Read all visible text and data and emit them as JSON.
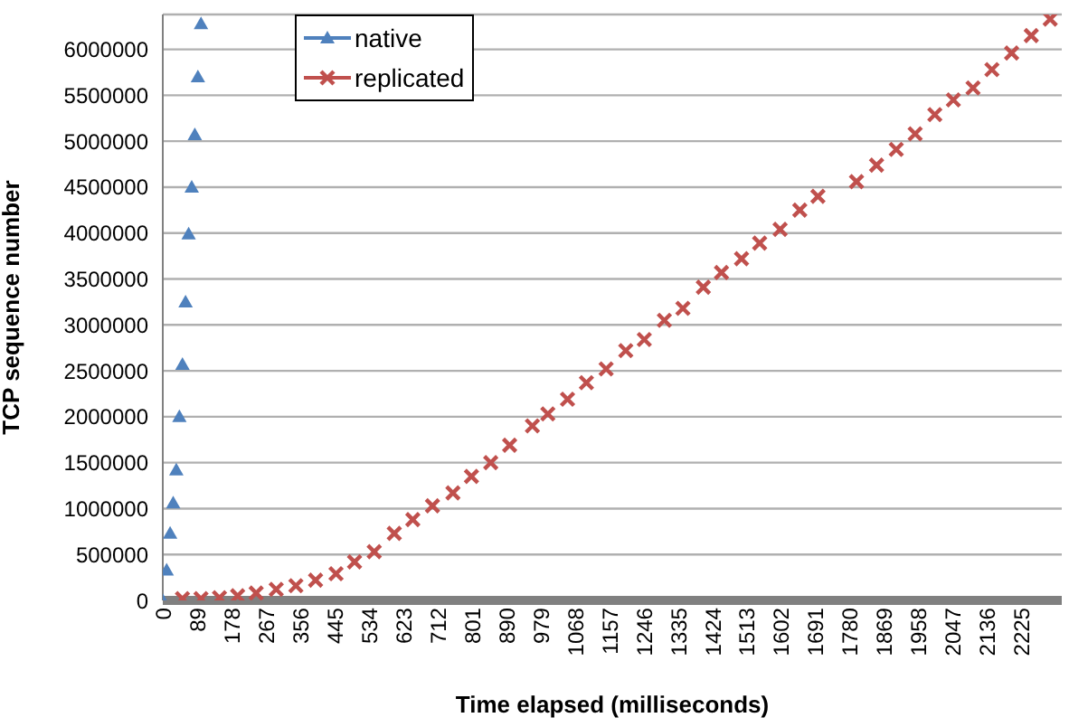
{
  "chart_data": {
    "type": "scatter",
    "xlabel": "Time elapsed (milliseconds)",
    "ylabel": "TCP sequence number",
    "xlim": [
      0,
      2330
    ],
    "xticks": [
      0,
      89,
      178,
      267,
      356,
      445,
      534,
      623,
      712,
      801,
      890,
      979,
      1068,
      1157,
      1246,
      1335,
      1424,
      1513,
      1602,
      1691,
      1780,
      1869,
      1958,
      2047,
      2136,
      2225
    ],
    "ylim": [
      0,
      6380000
    ],
    "yticks": [
      0,
      500000,
      1000000,
      1500000,
      2000000,
      2500000,
      3000000,
      3500000,
      4000000,
      4500000,
      5000000,
      5500000,
      6000000
    ],
    "grid": "y",
    "legend": "top left",
    "series": [
      {
        "name": "native",
        "color": "#4f81bd",
        "marker": "triangle",
        "x": [
          0,
          10,
          19,
          27,
          35,
          43,
          51,
          59,
          67,
          75,
          83,
          91,
          99
        ],
        "values": [
          0,
          330000,
          730000,
          1060000,
          1420000,
          2000000,
          2570000,
          3250000,
          3990000,
          4500000,
          5070000,
          5700000,
          6280000
        ]
      },
      {
        "name": "replicated",
        "color": "#c0504d",
        "marker": "cross",
        "x": [
          51,
          99,
          147,
          194,
          242,
          294,
          345,
          396,
          449,
          497,
          548,
          600,
          648,
          699,
          752,
          800,
          850,
          899,
          958,
          998,
          1049,
          1098,
          1149,
          1200,
          1248,
          1300,
          1348,
          1401,
          1448,
          1500,
          1547,
          1600,
          1651,
          1698,
          1798,
          1850,
          1901,
          1950,
          2001,
          2049,
          2100,
          2149,
          2200,
          2251,
          2300
        ],
        "values": [
          20000,
          20000,
          30000,
          50000,
          80000,
          120000,
          160000,
          220000,
          290000,
          420000,
          530000,
          730000,
          880000,
          1030000,
          1170000,
          1350000,
          1500000,
          1690000,
          1900000,
          2030000,
          2190000,
          2370000,
          2520000,
          2720000,
          2840000,
          3050000,
          3180000,
          3410000,
          3570000,
          3720000,
          3890000,
          4040000,
          4250000,
          4400000,
          4560000,
          4740000,
          4910000,
          5080000,
          5290000,
          5450000,
          5580000,
          5780000,
          5960000,
          6150000,
          6330000
        ]
      }
    ]
  }
}
